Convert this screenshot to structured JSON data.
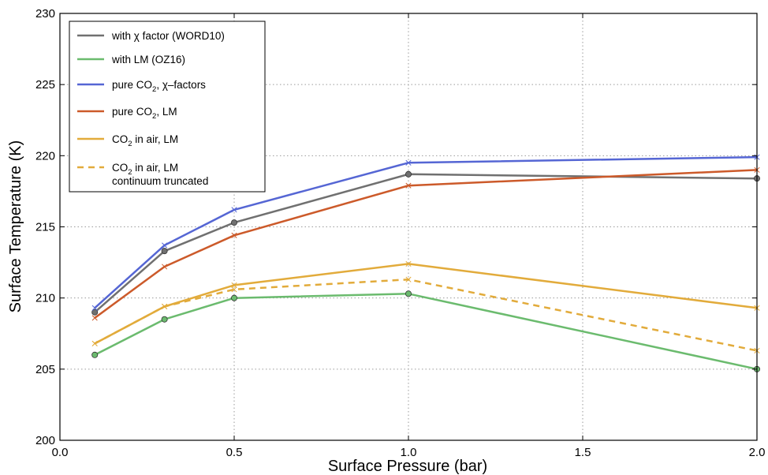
{
  "chart_data": {
    "type": "line",
    "xlabel": "Surface Pressure (bar)",
    "ylabel": "Surface Temperature (K)",
    "xlim": [
      0.0,
      2.0
    ],
    "ylim": [
      200,
      230
    ],
    "x_ticks": [
      "0.0",
      "0.5",
      "1.0",
      "1.5",
      "2.0"
    ],
    "y_ticks": [
      "200",
      "205",
      "210",
      "215",
      "220",
      "225",
      "230"
    ],
    "grid": true,
    "legend_position": "top-left",
    "x": [
      0.1,
      0.3,
      0.5,
      1.0,
      2.0
    ],
    "series": [
      {
        "name": "with χ factor (WORD10)",
        "legend_parts": [
          [
            "with χ factor (WORD10)",
            ""
          ]
        ],
        "values": [
          209.0,
          213.3,
          215.3,
          218.7,
          218.4
        ],
        "color": "#707070",
        "dashed": false,
        "marker": "dot"
      },
      {
        "name": "with LM (OZ16)",
        "legend_parts": [
          [
            "with LM (OZ16)",
            ""
          ]
        ],
        "values": [
          206.0,
          208.5,
          210.0,
          210.3,
          205.0
        ],
        "color": "#6bbb6e",
        "dashed": false,
        "marker": "dot"
      },
      {
        "name": "pure CO2, χ–factors",
        "legend_parts": [
          [
            "pure CO",
            ""
          ],
          [
            "2",
            "sub"
          ],
          [
            ", χ–factors",
            ""
          ]
        ],
        "values": [
          209.3,
          213.7,
          216.2,
          219.5,
          219.9
        ],
        "color": "#5566d4",
        "dashed": false,
        "marker": "x"
      },
      {
        "name": "pure CO2, LM",
        "legend_parts": [
          [
            "pure CO",
            ""
          ],
          [
            "2",
            "sub"
          ],
          [
            ", LM",
            ""
          ]
        ],
        "values": [
          208.6,
          212.2,
          214.4,
          217.9,
          219.0
        ],
        "color": "#cc5a2a",
        "dashed": false,
        "marker": "x"
      },
      {
        "name": "CO2 in air, LM",
        "legend_parts": [
          [
            "CO",
            ""
          ],
          [
            "2",
            "sub"
          ],
          [
            " in air, LM",
            ""
          ]
        ],
        "values": [
          206.8,
          209.4,
          210.9,
          212.4,
          209.3
        ],
        "color": "#e2ab3b",
        "dashed": false,
        "marker": "x"
      },
      {
        "name": "CO2 in air, LM continuum truncated",
        "legend_parts": [
          [
            "CO",
            ""
          ],
          [
            "2",
            "sub"
          ],
          [
            " in air, LM",
            ""
          ]
        ],
        "legend_line2": "continuum truncated",
        "values": [
          206.8,
          209.4,
          210.6,
          211.3,
          206.3
        ],
        "color": "#e2ab3b",
        "dashed": true,
        "marker": "x"
      }
    ]
  }
}
